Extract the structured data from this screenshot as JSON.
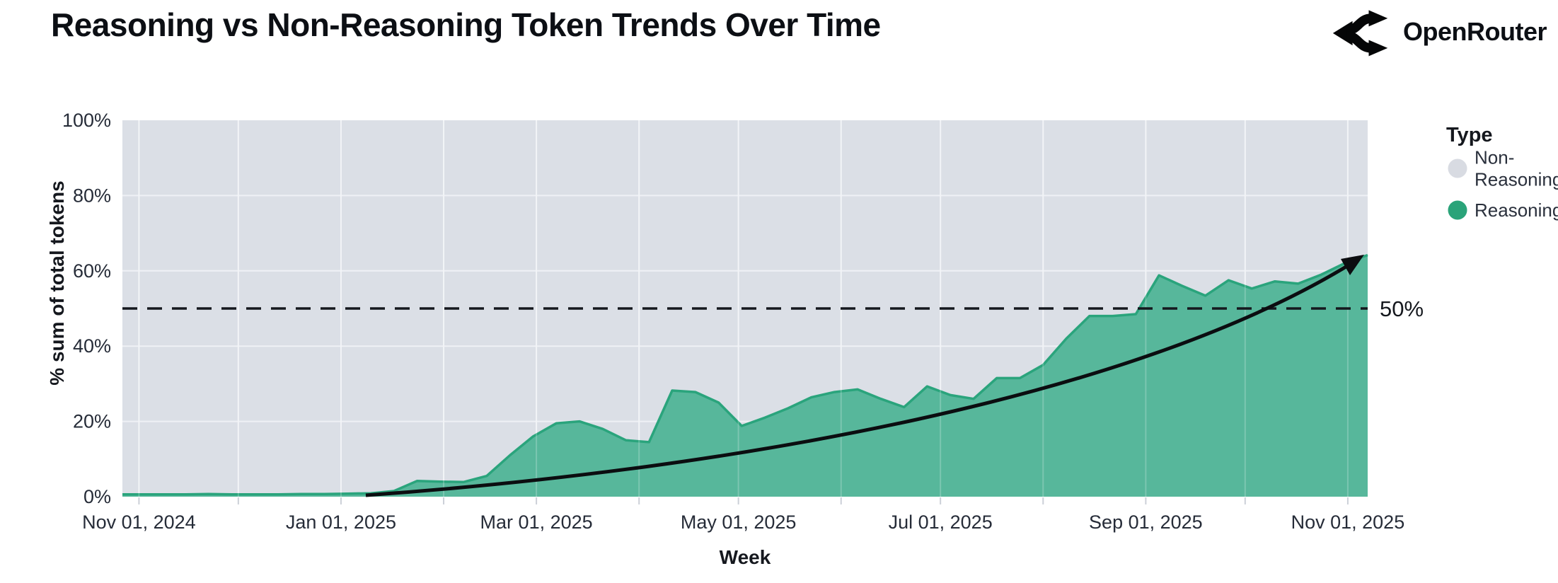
{
  "header": {
    "brand": "OpenRouter"
  },
  "chart_data": {
    "type": "area",
    "stacked": "percent",
    "title": "Reasoning vs Non-Reasoning Token Trends Over Time",
    "xlabel": "Week",
    "ylabel": "% sum of total tokens",
    "ylim": [
      0,
      100
    ],
    "grid": true,
    "yticks": [
      {
        "label": "0%",
        "value": 0
      },
      {
        "label": "20%",
        "value": 20
      },
      {
        "label": "40%",
        "value": 40
      },
      {
        "label": "60%",
        "value": 60
      },
      {
        "label": "80%",
        "value": 80
      },
      {
        "label": "100%",
        "value": 100
      }
    ],
    "xticks": [
      "Nov 01, 2024",
      "Jan 01, 2025",
      "Mar 01, 2025",
      "May 01, 2025",
      "Jul 01, 2025",
      "Sep 01, 2025",
      "Nov 01, 2025"
    ],
    "legend_position": "right",
    "legend": {
      "title": "Type",
      "items": [
        {
          "label": "Non-Reasoning",
          "label_lines": [
            "Non-",
            "Reasoning"
          ],
          "color": "#d8dbe2"
        },
        {
          "label": "Reasoning",
          "label_lines": [
            "Reasoning"
          ],
          "color": "#2aa379"
        }
      ]
    },
    "annotation": {
      "label": "50%",
      "value": 50,
      "line_style": "dashed"
    },
    "trend_arrow": {
      "from_week": "2025-01-10",
      "from_value": 0,
      "to_week": "2025-11-07",
      "to_value": 62
    },
    "weeks": [
      "2024-11-01",
      "2024-11-08",
      "2024-11-15",
      "2024-11-22",
      "2024-11-29",
      "2024-12-06",
      "2024-12-13",
      "2024-12-20",
      "2024-12-27",
      "2025-01-03",
      "2025-01-10",
      "2025-01-17",
      "2025-01-24",
      "2025-01-31",
      "2025-02-07",
      "2025-02-14",
      "2025-02-21",
      "2025-02-28",
      "2025-03-07",
      "2025-03-14",
      "2025-03-21",
      "2025-03-28",
      "2025-04-04",
      "2025-04-11",
      "2025-04-18",
      "2025-04-25",
      "2025-05-02",
      "2025-05-09",
      "2025-05-16",
      "2025-05-23",
      "2025-05-30",
      "2025-06-06",
      "2025-06-13",
      "2025-06-20",
      "2025-06-27",
      "2025-07-04",
      "2025-07-11",
      "2025-07-18",
      "2025-07-25",
      "2025-08-01",
      "2025-08-08",
      "2025-08-15",
      "2025-08-22",
      "2025-08-29",
      "2025-09-05",
      "2025-09-12",
      "2025-09-19",
      "2025-09-26",
      "2025-10-03",
      "2025-10-10",
      "2025-10-17",
      "2025-10-24",
      "2025-10-31",
      "2025-11-07"
    ],
    "series": [
      {
        "name": "Reasoning",
        "values": [
          0.6,
          0.6,
          0.6,
          0.7,
          0.6,
          0.6,
          0.6,
          0.7,
          0.7,
          0.8,
          0.9,
          1.5,
          4.2,
          4.0,
          3.9,
          5.5,
          11,
          16,
          19.5,
          20,
          18,
          15,
          14.5,
          28.2,
          27.8,
          25.0,
          18.8,
          21.0,
          23.5,
          26.4,
          27.8,
          28.5,
          26,
          23.8,
          29.3,
          27,
          26,
          31.5,
          31.5,
          35,
          42,
          48,
          48,
          48.5,
          58.8,
          56,
          53.4,
          57.5,
          55.3,
          57.2,
          56.6,
          59,
          62,
          64.2
        ]
      },
      {
        "name": "Non-Reasoning",
        "derived": "remainder_to_100_percent"
      }
    ],
    "colors": {
      "reasoning_fill": "#57b79b",
      "reasoning_edge": "#2aa47c",
      "non_reasoning_fill": "#dbdfe6",
      "gridline": "#eff1f5",
      "tick_mark": "#ccd0d8",
      "text": "#262c38",
      "trend": "#0b0d10"
    }
  }
}
